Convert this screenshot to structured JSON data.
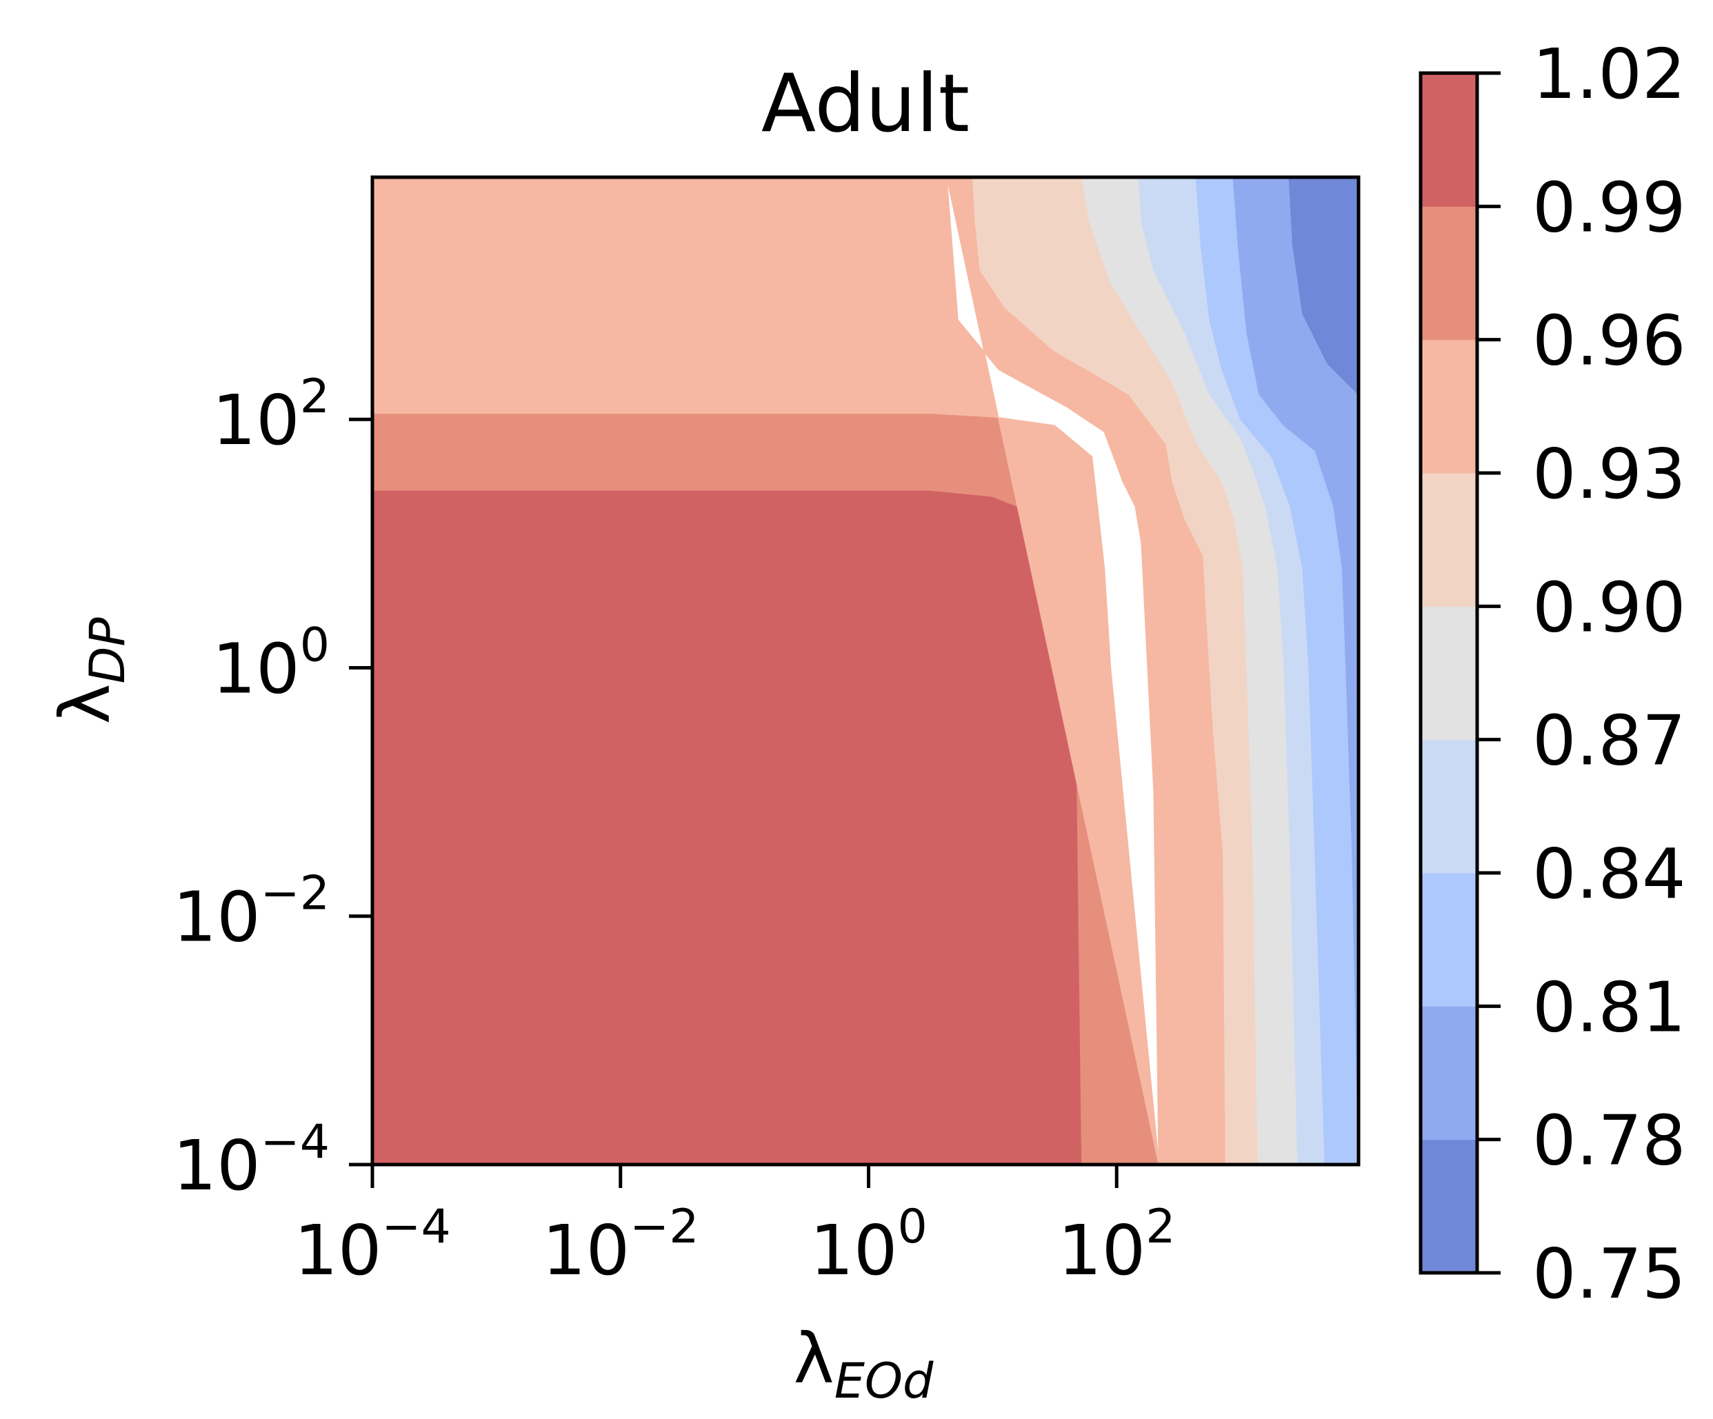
{
  "chart_data": {
    "type": "heatmap",
    "subtype": "filled-contour",
    "title": "Adult",
    "xlabel": {
      "symbol": "λ",
      "subscript": "EOd"
    },
    "ylabel": {
      "symbol": "λ",
      "subscript": "DP"
    },
    "xscale": "log",
    "yscale": "log",
    "x_exponent_range": [
      -4,
      3.95
    ],
    "y_exponent_range": [
      -4,
      3.95
    ],
    "x_ticks": [
      {
        "base": "10",
        "exp": "−4",
        "value_exp": -4
      },
      {
        "base": "10",
        "exp": "−2",
        "value_exp": -2
      },
      {
        "base": "10",
        "exp": "0",
        "value_exp": 0
      },
      {
        "base": "10",
        "exp": "2",
        "value_exp": 2
      }
    ],
    "y_ticks": [
      {
        "base": "10",
        "exp": "−4",
        "value_exp": -4
      },
      {
        "base": "10",
        "exp": "−2",
        "value_exp": -2
      },
      {
        "base": "10",
        "exp": "0",
        "value_exp": 0
      },
      {
        "base": "10",
        "exp": "2",
        "value_exp": 2
      }
    ],
    "colorbar": {
      "levels": [
        0.75,
        0.78,
        0.81,
        0.84,
        0.87,
        0.9,
        0.93,
        0.96,
        0.99,
        1.02
      ],
      "tick_labels": [
        "0.75",
        "0.78",
        "0.81",
        "0.84",
        "0.87",
        "0.90",
        "0.93",
        "0.96",
        "0.99",
        "1.02"
      ],
      "band_colors": [
        "#7088d8",
        "#90aaf0",
        "#adc8fc",
        "#cbdaf4",
        "#e2e2e2",
        "#f2d4c5",
        "#f6b8a2",
        "#e68f7d",
        "#d16264"
      ],
      "colormap": "coolwarm"
    },
    "regions": [
      {
        "range": [
          0.99,
          1.02
        ],
        "color": "#d16264",
        "path": [
          [
            -4,
            -4
          ],
          [
            -4,
            1.43
          ],
          [
            0.5,
            1.43
          ],
          [
            1.0,
            1.38
          ],
          [
            1.45,
            1.2
          ],
          [
            1.62,
            0.75
          ],
          [
            1.67,
            0
          ],
          [
            1.72,
            -4
          ]
        ]
      },
      {
        "range": [
          0.96,
          0.99
        ],
        "color": "#e68f7d",
        "path": [
          [
            1.72,
            -4
          ],
          [
            1.67,
            0
          ],
          [
            1.62,
            0.75
          ],
          [
            1.45,
            1.2
          ],
          [
            1.0,
            1.38
          ],
          [
            0.5,
            1.43
          ],
          [
            -4,
            1.43
          ],
          [
            -4,
            2.05
          ],
          [
            0.5,
            2.05
          ],
          [
            1.0,
            2.02
          ],
          [
            1.5,
            1.95
          ],
          [
            1.8,
            1.7
          ],
          [
            1.9,
            0.8
          ],
          [
            1.95,
            0
          ],
          [
            2.34,
            -4
          ]
        ]
      },
      {
        "range": [
          0.93,
          0.96
        ],
        "color": "#f6b8a2",
        "path": [
          [
            2.34,
            -4
          ],
          [
            1.95,
            0
          ],
          [
            1.9,
            0.8
          ],
          [
            1.8,
            1.7
          ],
          [
            1.5,
            1.95
          ],
          [
            1.0,
            2.02
          ],
          [
            0.5,
            2.05
          ],
          [
            -4,
            2.05
          ],
          [
            -4,
            3.95
          ],
          [
            0.63,
            3.95
          ],
          [
            0.72,
            2.8
          ],
          [
            1.05,
            2.4
          ],
          [
            1.6,
            2.1
          ],
          [
            1.9,
            1.9
          ],
          [
            2.05,
            1.5
          ],
          [
            2.15,
            1.3
          ],
          [
            2.2,
            1.0
          ],
          [
            2.25,
            0
          ],
          [
            2.3,
            -1
          ],
          [
            2.34,
            -4
          ],
          [
            2.88,
            -4
          ],
          [
            2.86,
            -1.5
          ],
          [
            2.78,
            -0.5
          ],
          [
            2.72,
            0.5
          ],
          [
            2.7,
            0.9
          ],
          [
            2.55,
            1.2
          ],
          [
            2.45,
            1.5
          ],
          [
            2.4,
            1.8
          ],
          [
            2.25,
            2.0
          ],
          [
            2.2,
            2.1
          ],
          [
            2.1,
            2.2
          ],
          [
            1.85,
            2.35
          ],
          [
            1.5,
            2.55
          ],
          [
            1.1,
            2.9
          ],
          [
            0.9,
            3.2
          ],
          [
            0.86,
            3.6
          ],
          [
            0.84,
            3.95
          ],
          [
            0.63,
            3.95
          ]
        ]
      },
      {
        "range": [
          0.9,
          0.93
        ],
        "color": "#f2d4c5",
        "path": [
          [
            0.84,
            3.95
          ],
          [
            0.86,
            3.6
          ],
          [
            0.9,
            3.2
          ],
          [
            1.1,
            2.9
          ],
          [
            1.5,
            2.55
          ],
          [
            1.85,
            2.35
          ],
          [
            2.1,
            2.2
          ],
          [
            2.25,
            2.0
          ],
          [
            2.4,
            1.8
          ],
          [
            2.45,
            1.5
          ],
          [
            2.55,
            1.2
          ],
          [
            2.7,
            0.9
          ],
          [
            2.72,
            0.5
          ],
          [
            2.78,
            -0.5
          ],
          [
            2.86,
            -1.5
          ],
          [
            2.88,
            -4
          ],
          [
            3.14,
            -4
          ],
          [
            3.1,
            -1.5
          ],
          [
            3.05,
            0
          ],
          [
            3.02,
            0.8
          ],
          [
            2.95,
            1.2
          ],
          [
            2.85,
            1.5
          ],
          [
            2.65,
            1.8
          ],
          [
            2.45,
            2.3
          ],
          [
            2.2,
            2.7
          ],
          [
            1.95,
            3.1
          ],
          [
            1.78,
            3.6
          ],
          [
            1.72,
            3.95
          ]
        ]
      },
      {
        "range": [
          0.87,
          0.9
        ],
        "color": "#e2e2e2",
        "path": [
          [
            1.72,
            3.95
          ],
          [
            1.78,
            3.6
          ],
          [
            1.95,
            3.1
          ],
          [
            2.2,
            2.7
          ],
          [
            2.45,
            2.3
          ],
          [
            2.65,
            1.8
          ],
          [
            2.85,
            1.5
          ],
          [
            2.95,
            1.2
          ],
          [
            3.02,
            0.8
          ],
          [
            3.05,
            0
          ],
          [
            3.1,
            -1.5
          ],
          [
            3.14,
            -4
          ],
          [
            3.46,
            -4
          ],
          [
            3.4,
            -1.5
          ],
          [
            3.35,
            0
          ],
          [
            3.3,
            0.8
          ],
          [
            3.2,
            1.3
          ],
          [
            3.1,
            1.6
          ],
          [
            3.0,
            1.85
          ],
          [
            2.75,
            2.2
          ],
          [
            2.55,
            2.7
          ],
          [
            2.3,
            3.2
          ],
          [
            2.2,
            3.6
          ],
          [
            2.18,
            3.95
          ]
        ]
      },
      {
        "range": [
          0.84,
          0.87
        ],
        "color": "#cbdaf4",
        "path": [
          [
            2.18,
            3.95
          ],
          [
            2.2,
            3.6
          ],
          [
            2.3,
            3.2
          ],
          [
            2.55,
            2.7
          ],
          [
            2.75,
            2.2
          ],
          [
            3.0,
            1.85
          ],
          [
            3.1,
            1.6
          ],
          [
            3.2,
            1.3
          ],
          [
            3.3,
            0.8
          ],
          [
            3.35,
            0
          ],
          [
            3.4,
            -1.5
          ],
          [
            3.46,
            -4
          ],
          [
            3.68,
            -4
          ],
          [
            3.6,
            -1.5
          ],
          [
            3.55,
            0
          ],
          [
            3.5,
            0.8
          ],
          [
            3.4,
            1.3
          ],
          [
            3.25,
            1.7
          ],
          [
            3.0,
            2.0
          ],
          [
            2.85,
            2.4
          ],
          [
            2.75,
            2.8
          ],
          [
            2.68,
            3.4
          ],
          [
            2.64,
            3.95
          ]
        ]
      },
      {
        "range": [
          0.81,
          0.84
        ],
        "color": "#adc8fc",
        "path": [
          [
            2.64,
            3.95
          ],
          [
            2.68,
            3.4
          ],
          [
            2.75,
            2.8
          ],
          [
            2.85,
            2.4
          ],
          [
            3.0,
            2.0
          ],
          [
            3.25,
            1.7
          ],
          [
            3.4,
            1.3
          ],
          [
            3.5,
            0.8
          ],
          [
            3.55,
            0
          ],
          [
            3.6,
            -1.5
          ],
          [
            3.68,
            -4
          ],
          [
            3.95,
            -4
          ],
          [
            3.95,
            -4
          ],
          [
            3.9,
            -1.5
          ],
          [
            3.85,
            0
          ],
          [
            3.82,
            0.8
          ],
          [
            3.75,
            1.3
          ],
          [
            3.6,
            1.75
          ],
          [
            3.35,
            1.95
          ],
          [
            3.15,
            2.2
          ],
          [
            3.05,
            2.7
          ],
          [
            2.98,
            3.4
          ],
          [
            2.94,
            3.95
          ]
        ]
      },
      {
        "range": [
          0.78,
          0.81
        ],
        "color": "#90aaf0",
        "path": [
          [
            2.94,
            3.95
          ],
          [
            2.98,
            3.4
          ],
          [
            3.05,
            2.7
          ],
          [
            3.15,
            2.2
          ],
          [
            3.35,
            1.95
          ],
          [
            3.6,
            1.75
          ],
          [
            3.75,
            1.3
          ],
          [
            3.82,
            0.8
          ],
          [
            3.85,
            0
          ],
          [
            3.9,
            -1.5
          ],
          [
            3.95,
            -4
          ],
          [
            3.95,
            2.2
          ],
          [
            3.85,
            2.3
          ],
          [
            3.7,
            2.45
          ],
          [
            3.5,
            2.85
          ],
          [
            3.42,
            3.4
          ],
          [
            3.39,
            3.95
          ]
        ]
      },
      {
        "range": [
          0.75,
          0.78
        ],
        "color": "#7088d8",
        "path": [
          [
            3.39,
            3.95
          ],
          [
            3.42,
            3.4
          ],
          [
            3.5,
            2.85
          ],
          [
            3.7,
            2.45
          ],
          [
            3.85,
            2.3
          ],
          [
            3.95,
            2.2
          ],
          [
            3.95,
            3.95
          ]
        ]
      }
    ]
  }
}
